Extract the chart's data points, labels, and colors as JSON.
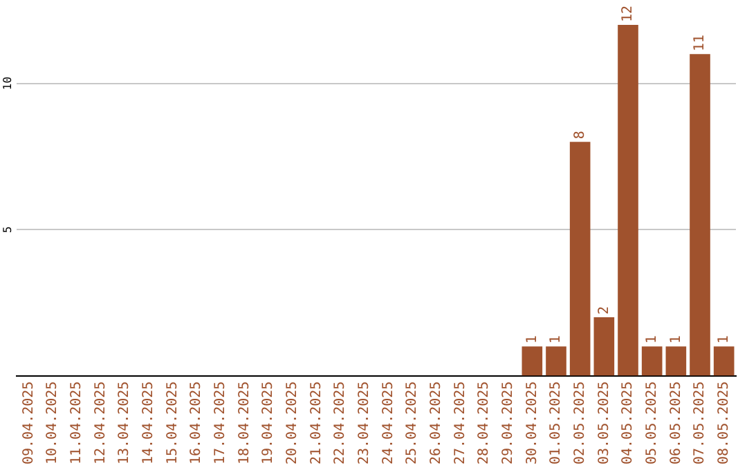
{
  "chart_data": {
    "type": "bar",
    "categories": [
      "09.04.2025",
      "10.04.2025",
      "11.04.2025",
      "12.04.2025",
      "13.04.2025",
      "14.04.2025",
      "15.04.2025",
      "16.04.2025",
      "17.04.2025",
      "18.04.2025",
      "19.04.2025",
      "20.04.2025",
      "21.04.2025",
      "22.04.2025",
      "23.04.2025",
      "24.04.2025",
      "25.04.2025",
      "26.04.2025",
      "27.04.2025",
      "28.04.2025",
      "29.04.2025",
      "30.04.2025",
      "01.05.2025",
      "02.05.2025",
      "03.05.2025",
      "04.05.2025",
      "05.05.2025",
      "06.05.2025",
      "07.05.2025",
      "08.05.2025"
    ],
    "values": [
      0,
      0,
      0,
      0,
      0,
      0,
      0,
      0,
      0,
      0,
      0,
      0,
      0,
      0,
      0,
      0,
      0,
      0,
      0,
      0,
      0,
      1,
      1,
      8,
      2,
      12,
      1,
      1,
      11,
      1
    ],
    "value_labels": [
      null,
      null,
      null,
      null,
      null,
      null,
      null,
      null,
      null,
      null,
      null,
      null,
      null,
      null,
      null,
      null,
      null,
      null,
      null,
      null,
      null,
      "1",
      "1",
      "8",
      "2",
      "12",
      "1",
      "1",
      "11",
      "1"
    ],
    "color": "#a0522d",
    "ylim": [
      0,
      12
    ],
    "yticks": [
      5,
      10
    ],
    "grid": "y",
    "legend": false
  }
}
